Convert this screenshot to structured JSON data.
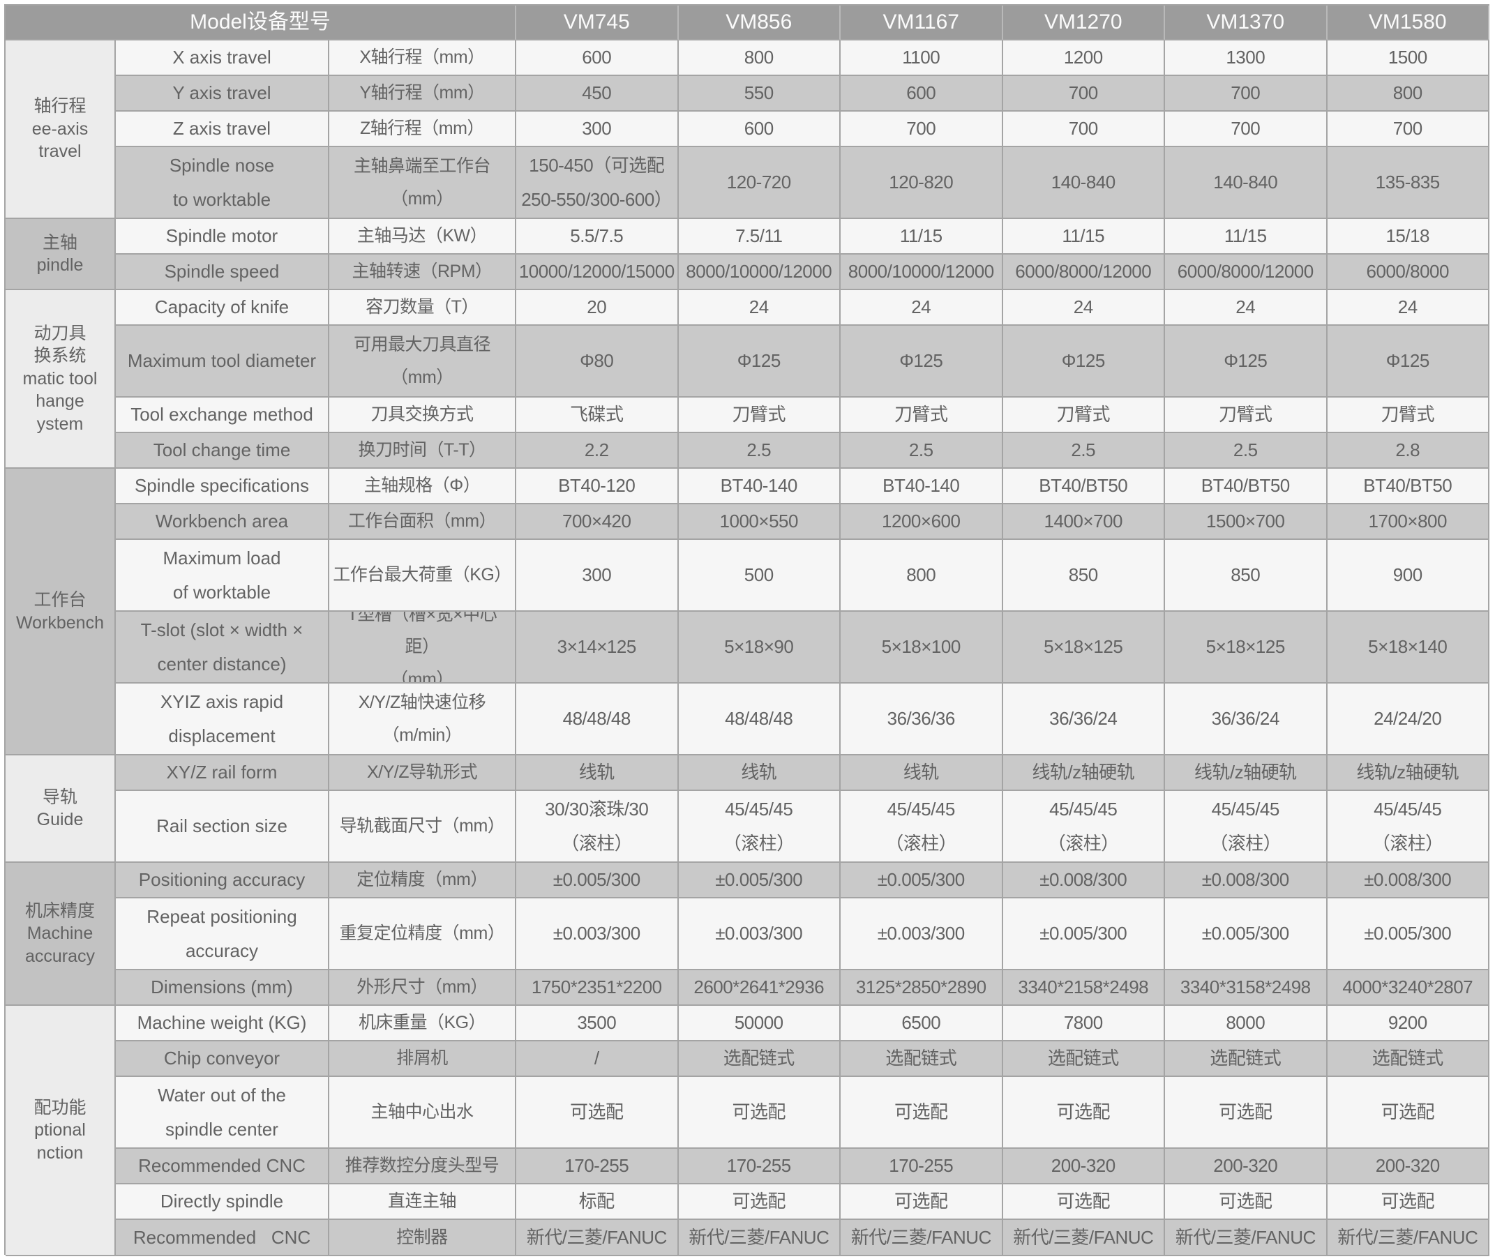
{
  "header": {
    "label_title": "Model设备型号",
    "models": [
      "VM745",
      "VM856",
      "VM1167",
      "VM1270",
      "VM1370",
      "VM1580"
    ]
  },
  "colors": {
    "header_bg": "#9c9c9c",
    "header_text": "#fbfbfb",
    "row_light_bg": "#f6f6f6",
    "row_gray_bg": "#c9c9c9",
    "category_light_bg": "#ececec",
    "category_gray_bg": "#c2c2c2",
    "border": "#a4a4a4",
    "text": "#636363"
  },
  "categories": [
    {
      "label": "轴行程\nee-axis\ntravel"
    },
    {
      "label": "主轴\npindle"
    },
    {
      "label": "动刀具\n换系统\nmatic tool\nhange\nystem"
    },
    {
      "label": "工作台\nWorkbench"
    },
    {
      "label": "导轨\nGuide"
    },
    {
      "label": "机床精度\nMachine\naccuracy"
    },
    {
      "label": "配功能\nptional\nnction"
    }
  ],
  "rows": [
    {
      "en": "X axis travel",
      "zh": "X轴行程（mm）",
      "values": [
        "600",
        "800",
        "1100",
        "1200",
        "1300",
        "1500"
      ]
    },
    {
      "en": "Y axis travel",
      "zh": "Y轴行程（mm）",
      "values": [
        "450",
        "550",
        "600",
        "700",
        "700",
        "800"
      ]
    },
    {
      "en": "Z axis travel",
      "zh": "Z轴行程（mm）",
      "values": [
        "300",
        "600",
        "700",
        "700",
        "700",
        "700"
      ]
    },
    {
      "en": "Spindle nose\nto worktable",
      "zh": "主轴鼻端至工作台\n（mm）",
      "values": [
        "150-450（可选配\n250-550/300-600）",
        "120-720",
        "120-820",
        "140-840",
        "140-840",
        "135-835"
      ]
    },
    {
      "en": "Spindle motor",
      "zh": "主轴马达（KW）",
      "values": [
        "5.5/7.5",
        "7.5/11",
        "11/15",
        "11/15",
        "11/15",
        "15/18"
      ]
    },
    {
      "en": "Spindle speed",
      "zh": "主轴转速（RPM）",
      "values": [
        "10000/12000/15000",
        "8000/10000/12000",
        "8000/10000/12000",
        "6000/8000/12000",
        "6000/8000/12000",
        "6000/8000"
      ]
    },
    {
      "en": "Capacity of knife",
      "zh": "容刀数量（T）",
      "values": [
        "20",
        "24",
        "24",
        "24",
        "24",
        "24"
      ]
    },
    {
      "en": "Maximum tool diameter",
      "zh": "可用最大刀具直径\n（mm）",
      "values": [
        "Φ80",
        "Φ125",
        "Φ125",
        "Φ125",
        "Φ125",
        "Φ125"
      ]
    },
    {
      "en": "Tool exchange method",
      "zh": "刀具交换方式",
      "values": [
        "飞碟式",
        "刀臂式",
        "刀臂式",
        "刀臂式",
        "刀臂式",
        "刀臂式"
      ]
    },
    {
      "en": "Tool change time",
      "zh": "换刀时间（T-T）",
      "values": [
        "2.2",
        "2.5",
        "2.5",
        "2.5",
        "2.5",
        "2.8"
      ]
    },
    {
      "en": "Spindle specifications",
      "zh": "主轴规格（Φ）",
      "values": [
        "BT40-120",
        "BT40-140",
        "BT40-140",
        "BT40/BT50",
        "BT40/BT50",
        "BT40/BT50"
      ]
    },
    {
      "en": "Workbench area",
      "zh": "工作台面积（mm）",
      "values": [
        "700×420",
        "1000×550",
        "1200×600",
        "1400×700",
        "1500×700",
        "1700×800"
      ]
    },
    {
      "en": "Maximum load\nof worktable",
      "zh": "工作台最大荷重（KG）",
      "values": [
        "300",
        "500",
        "800",
        "850",
        "850",
        "900"
      ]
    },
    {
      "en": "T-slot (slot × width ×\ncenter distance)",
      "zh": "T型槽（槽×宽×中心距）\n（mm）",
      "values": [
        "3×14×125",
        "5×18×90",
        "5×18×100",
        "5×18×125",
        "5×18×125",
        "5×18×140"
      ]
    },
    {
      "en": "XYIZ axis rapid\ndisplacement",
      "zh": "X/Y/Z轴快速位移\n（m/min）",
      "values": [
        "48/48/48",
        "48/48/48",
        "36/36/36",
        "36/36/24",
        "36/36/24",
        "24/24/20"
      ]
    },
    {
      "en": "XY/Z rail form",
      "zh": "X/Y/Z导轨形式",
      "values": [
        "线轨",
        "线轨",
        "线轨",
        "线轨/z轴硬轨",
        "线轨/z轴硬轨",
        "线轨/z轴硬轨"
      ]
    },
    {
      "en": "Rail section size",
      "zh": "导轨截面尺寸（mm）",
      "values": [
        "30/30滚珠/30\n（滚柱）",
        "45/45/45\n（滚柱）",
        "45/45/45\n（滚柱）",
        "45/45/45\n（滚柱）",
        "45/45/45\n（滚柱）",
        "45/45/45\n（滚柱）"
      ]
    },
    {
      "en": "Positioning accuracy",
      "zh": "定位精度（mm）",
      "values": [
        "±0.005/300",
        "±0.005/300",
        "±0.005/300",
        "±0.008/300",
        "±0.008/300",
        "±0.008/300"
      ]
    },
    {
      "en": "Repeat positioning\naccuracy",
      "zh": "重复定位精度（mm）",
      "values": [
        "±0.003/300",
        "±0.003/300",
        "±0.003/300",
        "±0.005/300",
        "±0.005/300",
        "±0.005/300"
      ]
    },
    {
      "en": "Dimensions (mm)",
      "zh": "外形尺寸（mm）",
      "values": [
        "1750*2351*2200",
        "2600*2641*2936",
        "3125*2850*2890",
        "3340*2158*2498",
        "3340*3158*2498",
        "4000*3240*2807"
      ]
    },
    {
      "en": "Machine weight (KG)",
      "zh": "机床重量（KG）",
      "values": [
        "3500",
        "50000",
        "6500",
        "7800",
        "8000",
        "9200"
      ]
    },
    {
      "en": "Chip conveyor",
      "zh": "排屑机",
      "values": [
        "/",
        "选配链式",
        "选配链式",
        "选配链式",
        "选配链式",
        "选配链式"
      ]
    },
    {
      "en": "Water out of the\nspindle center",
      "zh": "主轴中心出水",
      "values": [
        "可选配",
        "可选配",
        "可选配",
        "可选配",
        "可选配",
        "可选配"
      ]
    },
    {
      "en": "Recommended CNC",
      "zh": "推荐数控分度头型号",
      "values": [
        "170-255",
        "170-255",
        "170-255",
        "200-320",
        "200-320",
        "200-320"
      ]
    },
    {
      "en": "Directly spindle",
      "zh": "直连主轴",
      "values": [
        "标配",
        "可选配",
        "可选配",
        "可选配",
        "可选配",
        "可选配"
      ]
    },
    {
      "en": "Recommended   CNC",
      "zh": "控制器",
      "values": [
        "新代/三菱/FANUC",
        "新代/三菱/FANUC",
        "新代/三菱/FANUC",
        "新代/三菱/FANUC",
        "新代/三菱/FANUC",
        "新代/三菱/FANUC"
      ]
    }
  ]
}
